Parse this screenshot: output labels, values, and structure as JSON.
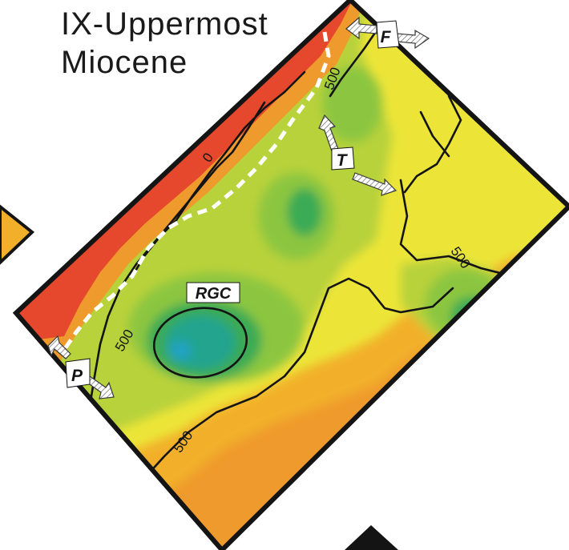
{
  "title": {
    "line1": "IX-Uppermost",
    "line2": "Miocene"
  },
  "contour_labels": {
    "zero": "0",
    "c500_north": "500",
    "c500_west": "500",
    "c500_south": "500",
    "c500_east": "500"
  },
  "markers": {
    "f": "F",
    "t": "T",
    "p": "P",
    "rgc": "RGC"
  },
  "colors": {
    "red": "#e5482c",
    "orange": "#ef9a2c",
    "orange_light": "#f2b02a",
    "yellow": "#ece537",
    "yellow_green": "#b8d23a",
    "green_light": "#8cc63f",
    "green": "#3aab55",
    "teal": "#23a48f",
    "cyan": "#23a3c3",
    "contour_line": "#141414",
    "dashed_line": "#ffffff"
  }
}
